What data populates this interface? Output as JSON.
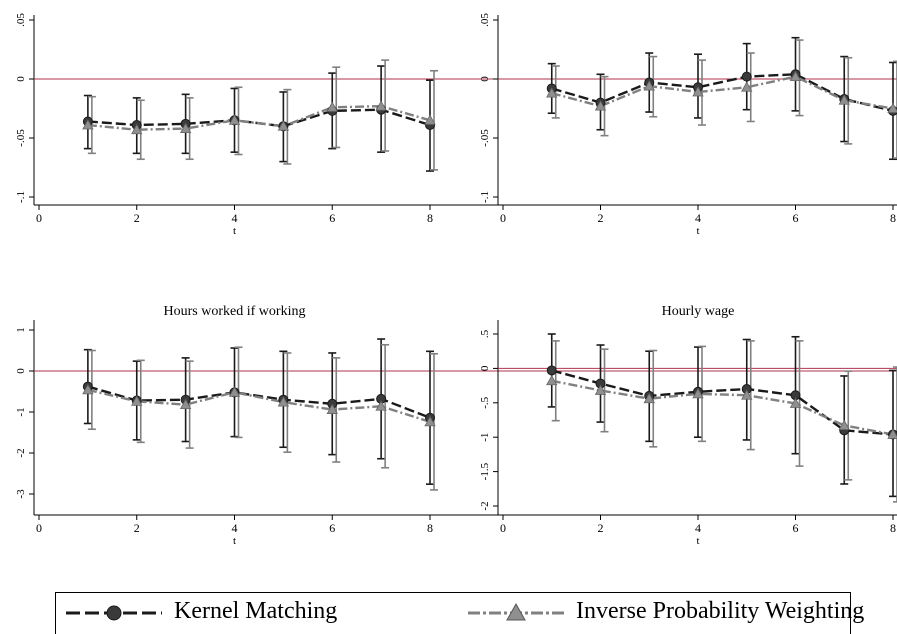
{
  "chart_data": [
    {
      "type": "line",
      "title": "",
      "xlabel": "t",
      "ylabel": "",
      "x": [
        1,
        2,
        3,
        4,
        5,
        6,
        7,
        8
      ],
      "xlim": [
        0,
        8
      ],
      "ylim": [
        -0.1,
        0.05
      ],
      "xticks": [
        0,
        2,
        4,
        6,
        8
      ],
      "xtick_labels": [
        "0",
        "2",
        "4",
        "6",
        "8"
      ],
      "yticks": [
        -0.1,
        -0.05,
        0,
        0.05
      ],
      "ytick_labels": [
        "-.1",
        "-.05",
        "0",
        ".05"
      ],
      "reference_line": 0,
      "series": [
        {
          "name": "Kernel Matching",
          "values": [
            -0.036,
            -0.039,
            -0.038,
            -0.035,
            -0.04,
            -0.027,
            -0.026,
            -0.039
          ],
          "ci_low": [
            -0.059,
            -0.063,
            -0.063,
            -0.062,
            -0.07,
            -0.059,
            -0.062,
            -0.078
          ],
          "ci_high": [
            -0.014,
            -0.016,
            -0.013,
            -0.008,
            -0.011,
            0.005,
            0.011,
            -0.001
          ]
        },
        {
          "name": "Inverse Probability Weighting",
          "values": [
            -0.039,
            -0.043,
            -0.042,
            -0.035,
            -0.04,
            -0.024,
            -0.023,
            -0.035
          ],
          "ci_low": [
            -0.063,
            -0.068,
            -0.068,
            -0.064,
            -0.072,
            -0.058,
            -0.061,
            -0.077
          ],
          "ci_high": [
            -0.015,
            -0.018,
            -0.016,
            -0.007,
            -0.009,
            0.01,
            0.016,
            0.007
          ]
        }
      ]
    },
    {
      "type": "line",
      "title": "",
      "xlabel": "t",
      "ylabel": "",
      "x": [
        1,
        2,
        3,
        4,
        5,
        6,
        7,
        8
      ],
      "xlim": [
        0,
        8
      ],
      "ylim": [
        -0.1,
        0.05
      ],
      "xticks": [
        0,
        2,
        4,
        6,
        8
      ],
      "xtick_labels": [
        "0",
        "2",
        "4",
        "6",
        "8"
      ],
      "yticks": [
        -0.1,
        -0.05,
        0,
        0.05
      ],
      "ytick_labels": [
        "-.1",
        "-.05",
        "0",
        ".05"
      ],
      "reference_line": 0,
      "series": [
        {
          "name": "Kernel Matching",
          "values": [
            -0.008,
            -0.02,
            -0.003,
            -0.007,
            0.002,
            0.004,
            -0.017,
            -0.027
          ],
          "ci_low": [
            -0.029,
            -0.043,
            -0.028,
            -0.033,
            -0.026,
            -0.027,
            -0.053,
            -0.068
          ],
          "ci_high": [
            0.013,
            0.004,
            0.022,
            0.021,
            0.03,
            0.035,
            0.019,
            0.014
          ]
        },
        {
          "name": "Inverse Probability Weighting",
          "values": [
            -0.012,
            -0.023,
            -0.006,
            -0.011,
            -0.007,
            0.002,
            -0.018,
            -0.025
          ],
          "ci_low": [
            -0.033,
            -0.048,
            -0.032,
            -0.039,
            -0.036,
            -0.031,
            -0.055,
            -0.067
          ],
          "ci_high": [
            0.011,
            0.002,
            0.019,
            0.016,
            0.022,
            0.033,
            0.018,
            0.015
          ]
        }
      ]
    },
    {
      "type": "line",
      "title": "Hours worked if working",
      "xlabel": "t",
      "ylabel": "",
      "x": [
        1,
        2,
        3,
        4,
        5,
        6,
        7,
        8
      ],
      "xlim": [
        0,
        8
      ],
      "ylim": [
        -3.5,
        1.2
      ],
      "xticks": [
        0,
        2,
        4,
        6,
        8
      ],
      "xtick_labels": [
        "0",
        "2",
        "4",
        "6",
        "8"
      ],
      "yticks": [
        -3,
        -2,
        -1,
        0,
        1
      ],
      "ytick_labels": [
        "-3",
        "-2",
        "-1",
        "0",
        "1"
      ],
      "reference_line": 0,
      "series": [
        {
          "name": "Kernel Matching",
          "values": [
            -0.38,
            -0.72,
            -0.7,
            -0.52,
            -0.7,
            -0.8,
            -0.68,
            -1.14
          ],
          "ci_low": [
            -1.28,
            -1.68,
            -1.72,
            -1.6,
            -1.86,
            -2.04,
            -2.14,
            -2.76
          ],
          "ci_high": [
            0.52,
            0.24,
            0.32,
            0.56,
            0.48,
            0.44,
            0.78,
            0.48
          ]
        },
        {
          "name": "Inverse Probability Weighting",
          "values": [
            -0.46,
            -0.74,
            -0.82,
            -0.52,
            -0.76,
            -0.94,
            -0.86,
            -1.24
          ],
          "ci_low": [
            -1.42,
            -1.74,
            -1.88,
            -1.62,
            -1.98,
            -2.22,
            -2.36,
            -2.9
          ],
          "ci_high": [
            0.5,
            0.26,
            0.24,
            0.58,
            0.44,
            0.32,
            0.64,
            0.42
          ]
        }
      ]
    },
    {
      "type": "line",
      "title": "Hourly wage",
      "xlabel": "t",
      "ylabel": "",
      "x": [
        1,
        2,
        3,
        4,
        5,
        6,
        7,
        8
      ],
      "xlim": [
        0,
        8
      ],
      "ylim": [
        -2.1,
        0.6
      ],
      "xticks": [
        0,
        2,
        4,
        6,
        8
      ],
      "xtick_labels": [
        "0",
        "2",
        "4",
        "6",
        "8"
      ],
      "yticks": [
        -2,
        -1.5,
        -1,
        -0.5,
        0,
        0.5
      ],
      "ytick_labels": [
        "-2",
        "-1.5",
        "-1",
        "-.5",
        "0",
        ".5"
      ],
      "reference_line": 0,
      "series": [
        {
          "name": "Kernel Matching",
          "values": [
            -0.03,
            -0.22,
            -0.4,
            -0.34,
            -0.3,
            -0.39,
            -0.9,
            -0.96
          ],
          "ci_low": [
            -0.56,
            -0.78,
            -1.06,
            -1.0,
            -1.04,
            -1.24,
            -1.68,
            -1.86
          ],
          "ci_high": [
            0.5,
            0.34,
            0.25,
            0.31,
            0.42,
            0.46,
            -0.11,
            -0.03
          ]
        },
        {
          "name": "Inverse Probability Weighting",
          "values": [
            -0.18,
            -0.32,
            -0.44,
            -0.37,
            -0.39,
            -0.51,
            -0.83,
            -0.96
          ],
          "ci_low": [
            -0.76,
            -0.92,
            -1.14,
            -1.06,
            -1.18,
            -1.42,
            -1.62,
            -1.94
          ],
          "ci_high": [
            0.4,
            0.28,
            0.26,
            0.32,
            0.4,
            0.4,
            -0.04,
            0.02
          ]
        }
      ]
    }
  ],
  "legend": {
    "items": [
      {
        "label": "Kernel Matching",
        "color": "#1a1a1a",
        "marker": "circle"
      },
      {
        "label": "Inverse Probability Weighting",
        "color": "#808080",
        "marker": "triangle"
      }
    ]
  },
  "colors": {
    "reference_line": "#b2334f",
    "series1": "#1a1a1a",
    "series2": "#808080",
    "series1_marker": "#3a3a3a",
    "series2_marker": "#8f8f8f"
  }
}
